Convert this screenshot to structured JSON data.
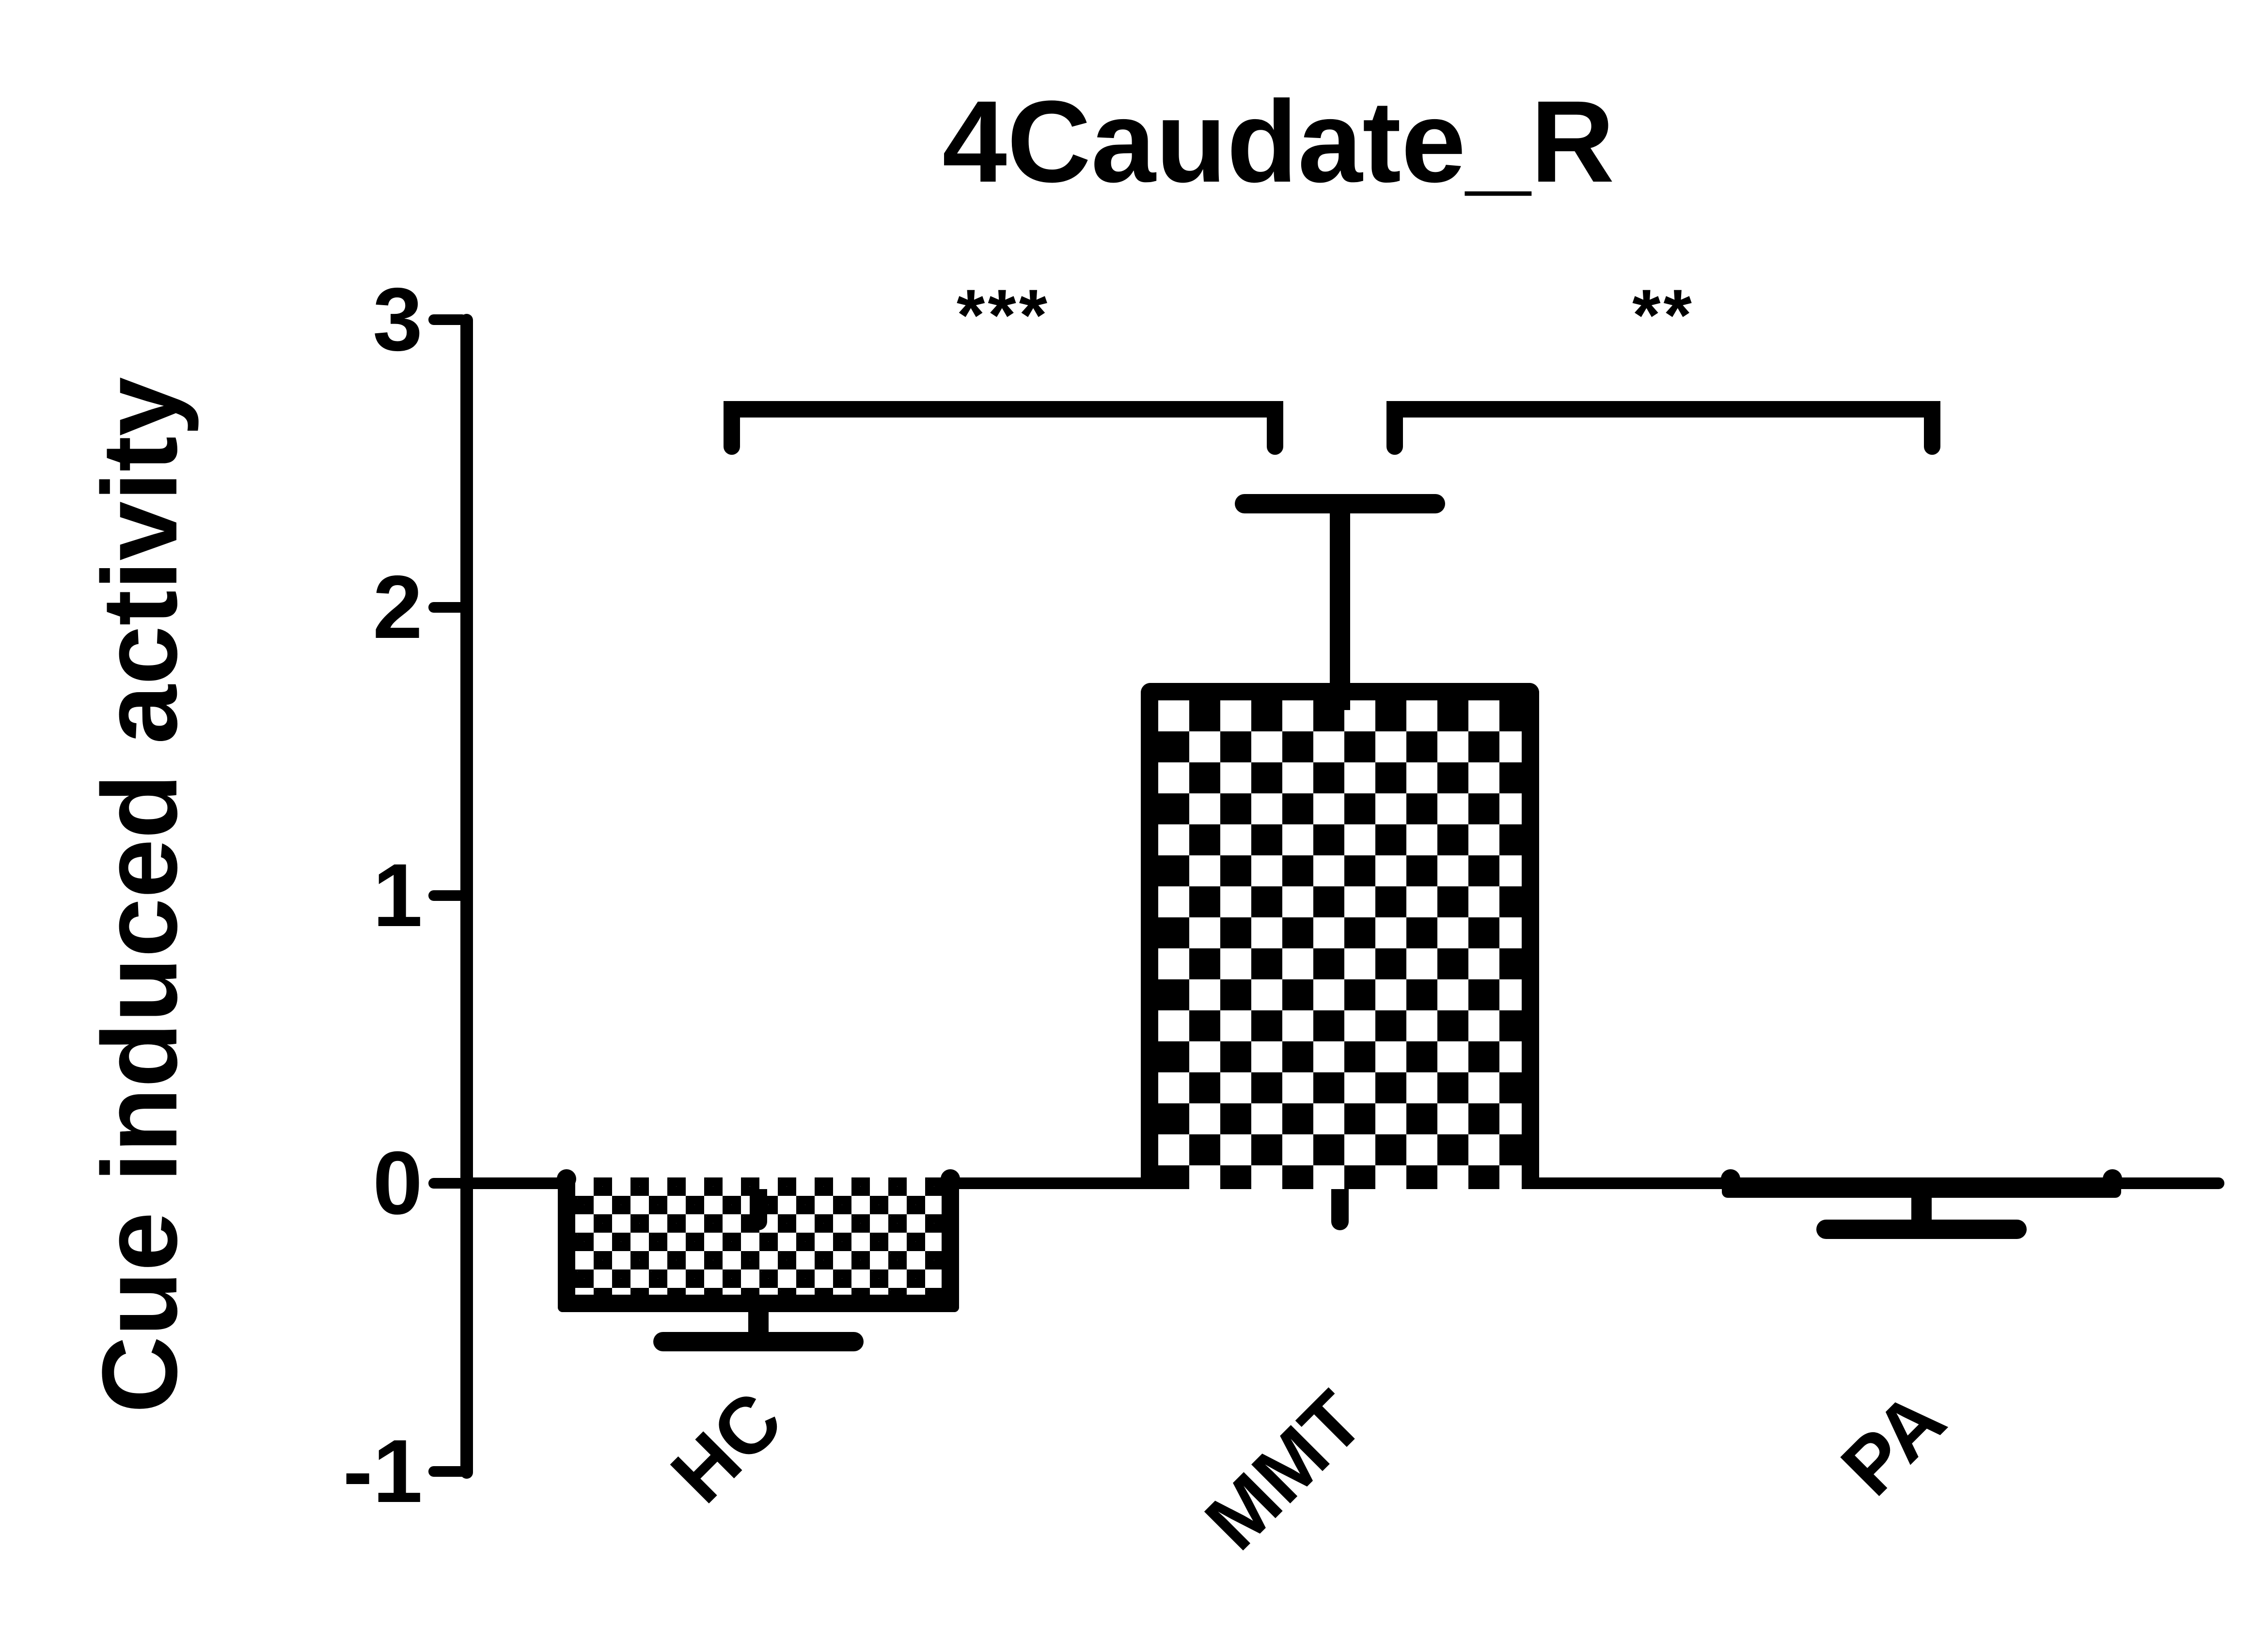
{
  "title": "4Caudate_R",
  "y_axis": {
    "label": "Cue induced activity",
    "tick_labels": [
      "3",
      "2",
      "1",
      "0",
      "-1"
    ]
  },
  "x_axis": {
    "categories": [
      "HC",
      "MMT",
      "PA"
    ]
  },
  "significance": [
    {
      "between": [
        "HC",
        "MMT"
      ],
      "label": "***"
    },
    {
      "between": [
        "MMT",
        "PA"
      ],
      "label": "**"
    }
  ],
  "colors": {
    "foreground": "#000000",
    "background": "#ffffff"
  },
  "chart_data": {
    "type": "bar",
    "title": "4Caudate_R",
    "xlabel": "",
    "ylabel": "Cue induced activity",
    "categories": [
      "HC",
      "MMT",
      "PA"
    ],
    "values": [
      -0.42,
      1.71,
      -0.05
    ],
    "errors": [
      0.13,
      0.65,
      0.11
    ],
    "error_bars": "one-sided, extending away from zero",
    "ylim": [
      -1,
      3
    ],
    "yticks": [
      3,
      2,
      1,
      0,
      -1
    ],
    "grid": false,
    "legend": false,
    "bar_fill_patterns": [
      "fine-checkerboard",
      "coarse-checkerboard",
      "solid-black"
    ],
    "annotations": [
      {
        "between": [
          "HC",
          "MMT"
        ],
        "label": "***"
      },
      {
        "between": [
          "MMT",
          "PA"
        ],
        "label": "**"
      }
    ]
  }
}
